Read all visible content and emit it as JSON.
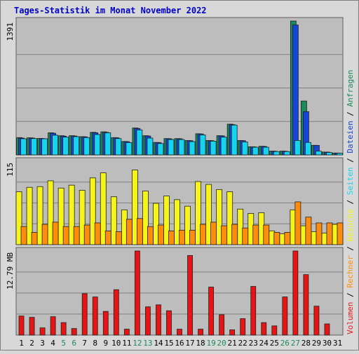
{
  "chart_data": {
    "type": "bar",
    "title": "Tages-Statistik im Monat November 2022",
    "colors": {
      "title": "#0000cc",
      "background": "#d8d8d8",
      "panel": "#bdbdbd",
      "grid": "#808080",
      "anfragen": "#1a8a5a",
      "dateien": "#1644d8",
      "seiten": "#14d4f0",
      "besuche": "#f5f51a",
      "rechner": "#ff8c0a",
      "volumen": "#e81414",
      "day_default": "#000000",
      "day_weekend": "#1a8a5a"
    },
    "categories": [
      "1",
      "2",
      "3",
      "4",
      "5",
      "6",
      "7",
      "8",
      "9",
      "10",
      "11",
      "12",
      "13",
      "14",
      "15",
      "16",
      "17",
      "18",
      "19",
      "20",
      "21",
      "22",
      "23",
      "24",
      "25",
      "26",
      "27",
      "28",
      "29",
      "30",
      "31"
    ],
    "weekend_days": [
      "5",
      "6",
      "12",
      "13",
      "19",
      "20",
      "26",
      "27"
    ],
    "panels": [
      {
        "ylabel": "1391",
        "ymax": 1391,
        "series": [
          {
            "name": "Anfragen",
            "color_key": "anfragen",
            "values": [
              180,
              178,
              172,
              230,
              200,
              200,
              190,
              235,
              240,
              180,
              140,
              280,
              200,
              130,
              170,
              170,
              150,
              220,
              150,
              200,
              320,
              150,
              85,
              90,
              40,
              40,
              1391,
              560,
              100,
              30,
              20
            ]
          },
          {
            "name": "Dateien",
            "color_key": "dateien",
            "values": [
              175,
              175,
              170,
              225,
              195,
              196,
              188,
              230,
              235,
              178,
              138,
              275,
              196,
              128,
              168,
              168,
              148,
              218,
              148,
              198,
              315,
              148,
              84,
              88,
              38,
              38,
              1350,
              450,
              99,
              29,
              19
            ]
          },
          {
            "name": "Seiten",
            "color_key": "seiten",
            "values": [
              168,
              170,
              168,
              205,
              185,
              190,
              180,
              212,
              230,
              170,
              128,
              260,
              175,
              118,
              160,
              160,
              138,
              208,
              143,
              185,
              310,
              135,
              80,
              80,
              35,
              35,
              150,
              130,
              40,
              25,
              18
            ]
          }
        ]
      },
      {
        "ylabel": "115",
        "ymax": 115,
        "series": [
          {
            "name": "Besuche",
            "color_key": "besuche",
            "values": [
              73,
              79,
              80,
              88,
              78,
              82,
              75,
              92,
              99,
              66,
              48,
              103,
              74,
              57,
              67,
              62,
              53,
              87,
              83,
              76,
              73,
              49,
              43,
              44,
              19,
              15,
              48,
              26,
              18,
              16,
              28
            ]
          },
          {
            "name": "Rechner",
            "color_key": "rechner",
            "values": [
              25,
              17,
              28,
              31,
              25,
              25,
              27,
              30,
              19,
              18,
              35,
              36,
              25,
              27,
              19,
              20,
              20,
              28,
              31,
              26,
              28,
              23,
              27,
              27,
              17,
              17,
              59,
              38,
              30,
              30,
              30
            ]
          }
        ]
      },
      {
        "ylabel": "12.79 MB",
        "ymax": 12.79,
        "series": [
          {
            "name": "Volumen",
            "color_key": "volumen",
            "values": [
              2.9,
              2.7,
              1.1,
              2.8,
              1.9,
              1.0,
              6.3,
              5.8,
              3.6,
              6.9,
              0.9,
              12.79,
              4.3,
              4.6,
              3.7,
              0.9,
              12.1,
              0.9,
              7.3,
              3.1,
              0.8,
              2.5,
              7.4,
              1.9,
              1.4,
              5.8,
              12.79,
              9.2,
              4.4,
              1.7,
              0
            ]
          }
        ]
      }
    ],
    "legend": [
      {
        "label": "Volumen",
        "color_key": "volumen"
      },
      {
        "label": "Rechner",
        "color_key": "rechner"
      },
      {
        "label": "Besuche",
        "color_key": "besuche"
      },
      {
        "label": "Seiten",
        "color_key": "seiten"
      },
      {
        "label": "Dateien",
        "color_key": "dateien"
      },
      {
        "label": "Anfragen",
        "color_key": "anfragen"
      }
    ],
    "legend_separator": "/",
    "legend_placement": "right-vertical"
  }
}
